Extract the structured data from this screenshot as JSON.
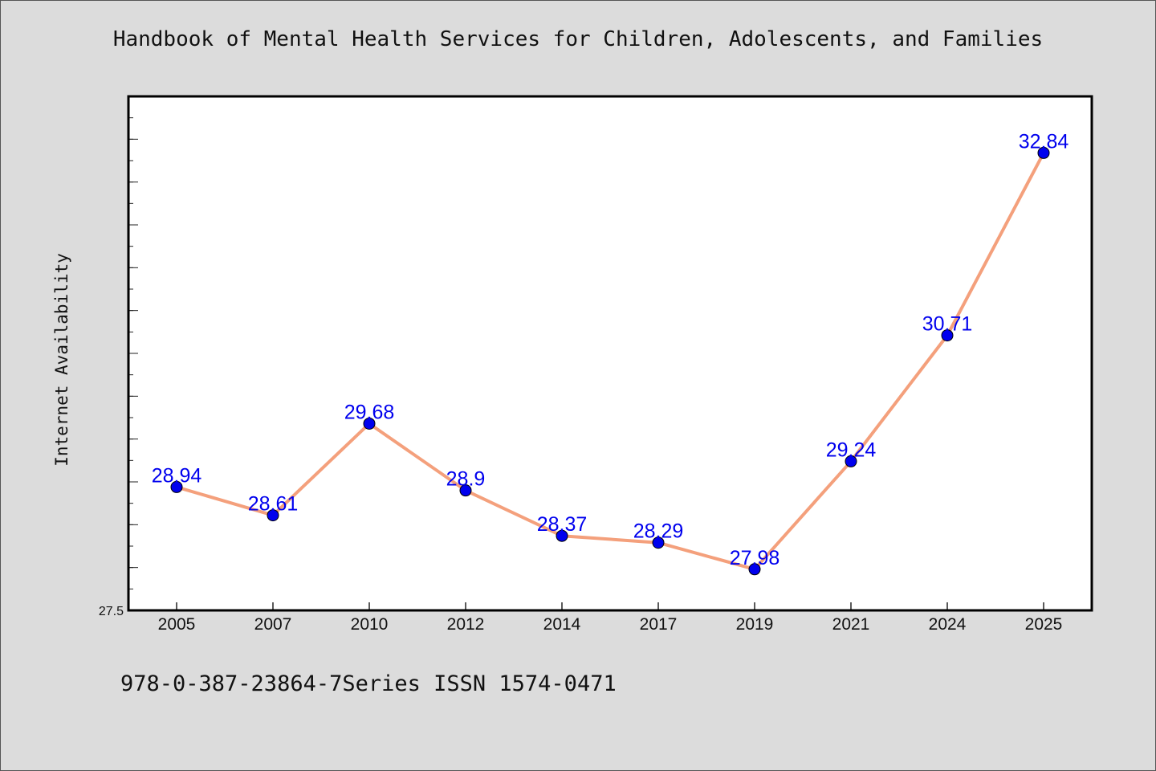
{
  "chart_data": {
    "type": "line",
    "title": "Handbook of Mental Health Services for Children, Adolescents, and Families",
    "ylabel": "Internet Availability",
    "xlabel": "",
    "categories": [
      "2005",
      "2007",
      "2010",
      "2012",
      "2014",
      "2017",
      "2019",
      "2021",
      "2024",
      "2025"
    ],
    "series": [
      {
        "values": [
          28.94,
          28.61,
          29.68,
          28.9,
          28.37,
          28.29,
          27.98,
          29.24,
          30.71,
          32.84
        ]
      }
    ],
    "data_labels": [
      "28.94",
      "28.61",
      "29.68",
      "28.9",
      "28.37",
      "28.29",
      "27.98",
      "29.24",
      "30.71",
      "32.84"
    ],
    "ylim": [
      27.5,
      33.5
    ],
    "y_tick_labels": [
      "27.5"
    ],
    "grid": false,
    "line_color": "#f4a07c",
    "marker_color": "#0000ee",
    "label_color": "#0000ee"
  },
  "footer_text": "978-0-387-23864-7Series ISSN 1574-0471"
}
